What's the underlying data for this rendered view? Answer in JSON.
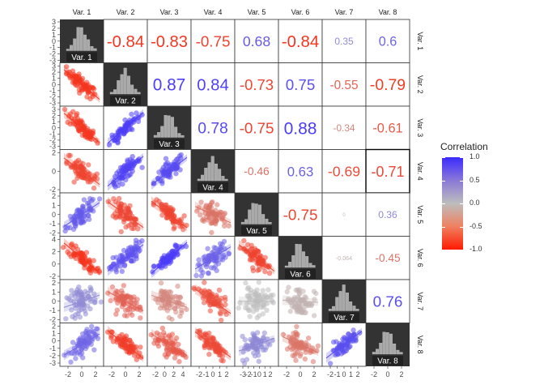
{
  "chart_data": {
    "type": "scatter",
    "variables": [
      "Var. 1",
      "Var. 2",
      "Var. 3",
      "Var. 4",
      "Var. 5",
      "Var. 6",
      "Var. 7",
      "Var. 8"
    ],
    "correlations": [
      [
        1,
        -0.84,
        -0.83,
        -0.75,
        0.68,
        -0.84,
        0.35,
        0.6
      ],
      [
        -0.84,
        1,
        0.87,
        0.84,
        -0.73,
        0.75,
        -0.55,
        -0.79
      ],
      [
        -0.83,
        0.87,
        1,
        0.78,
        -0.75,
        0.88,
        -0.34,
        -0.61
      ],
      [
        -0.75,
        0.84,
        0.78,
        1,
        -0.46,
        0.63,
        -0.69,
        -0.71
      ],
      [
        0.68,
        -0.73,
        -0.75,
        -0.46,
        1,
        -0.75,
        0.0,
        0.36
      ],
      [
        -0.84,
        0.75,
        0.88,
        0.63,
        -0.75,
        1,
        -0.064,
        -0.45
      ],
      [
        0.35,
        -0.55,
        -0.34,
        -0.69,
        0.0,
        -0.064,
        1,
        0.76
      ],
      [
        0.6,
        -0.79,
        -0.61,
        -0.71,
        0.36,
        -0.45,
        0.76,
        1
      ]
    ],
    "correlation_labels": [
      [
        "",
        "-0.84",
        "-0.83",
        "-0.75",
        "0.68",
        "-0.84",
        "0.35",
        "0.6"
      ],
      [
        "",
        "",
        "0.87",
        "0.84",
        "-0.73",
        "0.75",
        "-0.55",
        "-0.79"
      ],
      [
        "",
        "",
        "",
        "0.78",
        "-0.75",
        "0.88",
        "-0.34",
        "-0.61"
      ],
      [
        "",
        "",
        "",
        "",
        "-0.46",
        "0.63",
        "-0.69",
        "-0.71"
      ],
      [
        "",
        "",
        "",
        "",
        "",
        "-0.75",
        "0",
        "0.36"
      ],
      [
        "",
        "",
        "",
        "",
        "",
        "",
        "-0.064",
        "-0.45"
      ],
      [
        "",
        "",
        "",
        "",
        "",
        "",
        "",
        "0.76"
      ],
      [
        "",
        "",
        "",
        "",
        "",
        "",
        "",
        ""
      ]
    ],
    "highlighted_cell": {
      "row": 4,
      "col": 8
    },
    "x_ticks": [
      [
        "-2",
        "0",
        "2"
      ],
      [
        "-2",
        "0",
        "2"
      ],
      [
        "-2",
        "0",
        "2",
        "4"
      ],
      [
        "-2",
        "-1",
        "0",
        "1",
        "2"
      ],
      [
        "-3",
        "-2",
        "-1",
        "0",
        "1",
        "2"
      ],
      [
        "-2",
        "0",
        "2"
      ],
      [
        "-2",
        "-1",
        "0",
        "1",
        "2"
      ],
      [
        "-2",
        "0",
        "2"
      ]
    ],
    "y_ticks_top_panel": [
      "3",
      "2",
      "1",
      "0",
      "-1",
      "-2",
      "-3"
    ],
    "y_ticks": [
      [
        "-3",
        "-2",
        "-1",
        "0",
        "1",
        "2",
        "3"
      ],
      [
        "-3",
        "-2",
        "-1",
        "0",
        "1",
        "2",
        "3"
      ],
      [
        "-2",
        "0",
        "2"
      ],
      [
        "-2",
        "-1",
        "0",
        "1",
        "2"
      ],
      [
        "-2",
        "0",
        "2",
        "4"
      ],
      [
        "-2",
        "-1",
        "0",
        "1",
        "2"
      ],
      [
        "-3",
        "-2",
        "-1",
        "0",
        "1",
        "2"
      ]
    ],
    "legend": {
      "title": "Correlation",
      "ticks": [
        "1.0",
        "0.5",
        "0.0",
        "-0.5",
        "-1.0"
      ],
      "range": [
        -1,
        1
      ],
      "placement": "right"
    },
    "grid": false
  },
  "colors": {
    "positive": "#3b2bff",
    "neutral": "#bdbdbd",
    "negative": "#ff1a00",
    "diagonal_bg": "#333333",
    "hist_bar": "#a9a9a9"
  }
}
